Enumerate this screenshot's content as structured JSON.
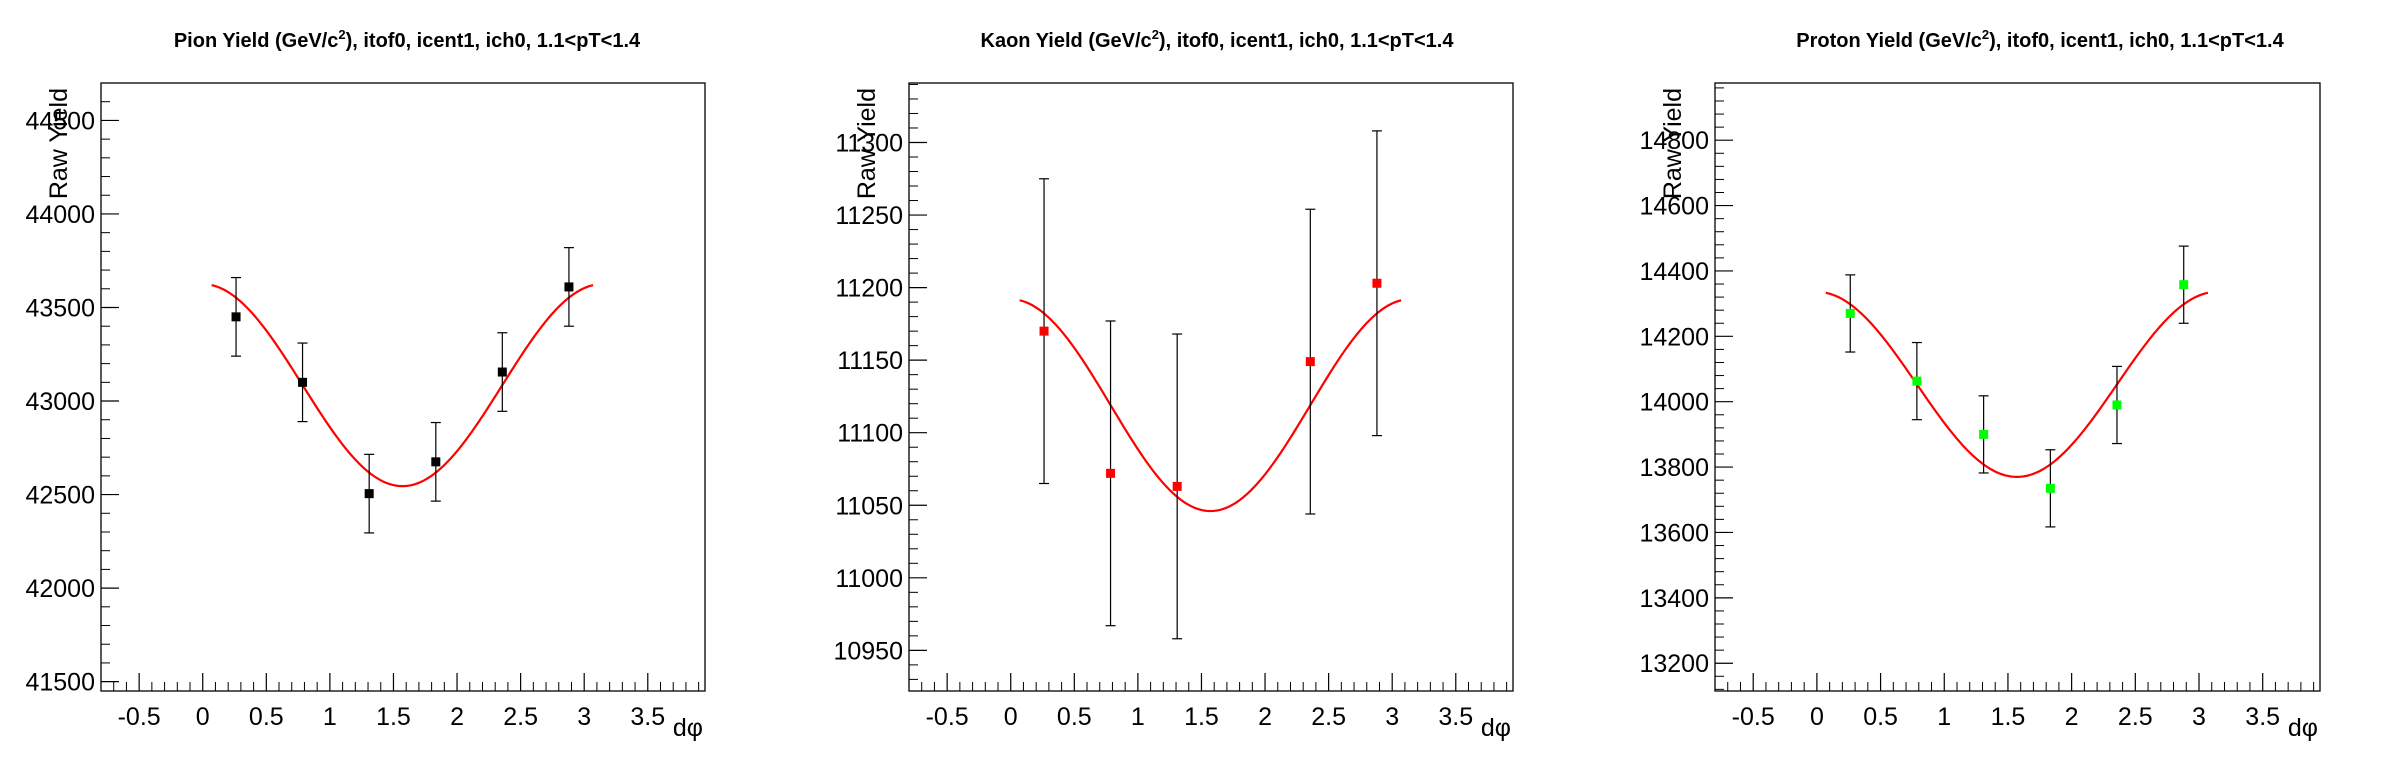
{
  "chart_data": [
    {
      "type": "scatter",
      "title": {
        "prefix": "Pion Yield (GeV/c",
        "sup": "2",
        "suffix": "), itof0, icent1, ich0, 1.1<pT<1.4"
      },
      "xlabel": "dφ",
      "ylabel": "Raw Yield",
      "xlim": [
        -0.8,
        3.95
      ],
      "ylim": [
        41450,
        44700
      ],
      "xticks": [
        -0.5,
        0,
        0.5,
        1,
        1.5,
        2,
        2.5,
        3,
        3.5
      ],
      "xtick_labels": [
        "-0.5",
        "0",
        "0.5",
        "1",
        "1.5",
        "2",
        "2.5",
        "3",
        "3.5"
      ],
      "yticks": [
        41500,
        42000,
        42500,
        43000,
        43500,
        44000,
        44500
      ],
      "ytick_labels": [
        "41500",
        "42000",
        "42500",
        "43000",
        "43500",
        "44000",
        "44500"
      ],
      "y_minor_step": 100,
      "marker_color": "#000000",
      "fit_color": "#ff0000",
      "points": [
        {
          "x": 0.262,
          "y": 43450,
          "err": 210
        },
        {
          "x": 0.785,
          "y": 43100,
          "err": 210
        },
        {
          "x": 1.309,
          "y": 42505,
          "err": 210
        },
        {
          "x": 1.833,
          "y": 42675,
          "err": 210
        },
        {
          "x": 2.356,
          "y": 43155,
          "err": 210
        },
        {
          "x": 2.88,
          "y": 43610,
          "err": 210
        }
      ],
      "fit": {
        "function": "a + b*cos(2x)",
        "a": 43085,
        "b": 540,
        "x_range": [
          0.07,
          3.07
        ]
      }
    },
    {
      "type": "scatter",
      "title": {
        "prefix": "Kaon Yield (GeV/c",
        "sup": "2",
        "suffix": "), itof0, icent1, ich0, 1.1<pT<1.4"
      },
      "xlabel": "dφ",
      "ylabel": "Raw Yield",
      "xlim": [
        -0.8,
        3.95
      ],
      "ylim": [
        10922,
        11341
      ],
      "xticks": [
        -0.5,
        0,
        0.5,
        1,
        1.5,
        2,
        2.5,
        3,
        3.5
      ],
      "xtick_labels": [
        "-0.5",
        "0",
        "0.5",
        "1",
        "1.5",
        "2",
        "2.5",
        "3",
        "3.5"
      ],
      "yticks": [
        10950,
        11000,
        11050,
        11100,
        11150,
        11200,
        11250,
        11300
      ],
      "ytick_labels": [
        "10950",
        "11000",
        "11050",
        "11100",
        "11150",
        "11200",
        "11250",
        "11300"
      ],
      "y_minor_step": 10,
      "marker_color": "#ff0000",
      "fit_color": "#ff0000",
      "points": [
        {
          "x": 0.262,
          "y": 11170,
          "err": 105
        },
        {
          "x": 0.785,
          "y": 11072,
          "err": 105
        },
        {
          "x": 1.309,
          "y": 11063,
          "err": 105
        },
        {
          "x": 2.356,
          "y": 11149,
          "err": 105
        },
        {
          "x": 2.88,
          "y": 11203,
          "err": 105
        }
      ],
      "fit": {
        "function": "a + b*cos(2x)",
        "a": 11119,
        "b": 73,
        "x_range": [
          0.07,
          3.07
        ]
      }
    },
    {
      "type": "scatter",
      "title": {
        "prefix": "Proton Yield (GeV/c",
        "sup": "2",
        "suffix": "), itof0, icent1, ich0, 1.1<pT<1.4"
      },
      "xlabel": "dφ",
      "ylabel": "Raw Yield",
      "xlim": [
        -0.8,
        3.95
      ],
      "ylim": [
        13115,
        14975
      ],
      "xticks": [
        -0.5,
        0,
        0.5,
        1,
        1.5,
        2,
        2.5,
        3,
        3.5
      ],
      "xtick_labels": [
        "-0.5",
        "0",
        "0.5",
        "1",
        "1.5",
        "2",
        "2.5",
        "3",
        "3.5"
      ],
      "yticks": [
        13200,
        13400,
        13600,
        13800,
        14000,
        14200,
        14400,
        14600,
        14800
      ],
      "ytick_labels": [
        "13200",
        "13400",
        "13600",
        "13800",
        "14000",
        "14200",
        "14400",
        "14600",
        "14800"
      ],
      "y_minor_step": 40,
      "marker_color": "#00ff00",
      "fit_color": "#ff0000",
      "points": [
        {
          "x": 0.262,
          "y": 14270,
          "err": 118
        },
        {
          "x": 0.785,
          "y": 14063,
          "err": 118
        },
        {
          "x": 1.309,
          "y": 13900,
          "err": 118
        },
        {
          "x": 1.833,
          "y": 13735,
          "err": 118
        },
        {
          "x": 2.356,
          "y": 13990,
          "err": 118
        },
        {
          "x": 2.88,
          "y": 14358,
          "err": 118
        }
      ],
      "fit": {
        "function": "a + b*cos(2x)",
        "a": 14053,
        "b": 283,
        "x_range": [
          0.07,
          3.07
        ]
      }
    }
  ]
}
